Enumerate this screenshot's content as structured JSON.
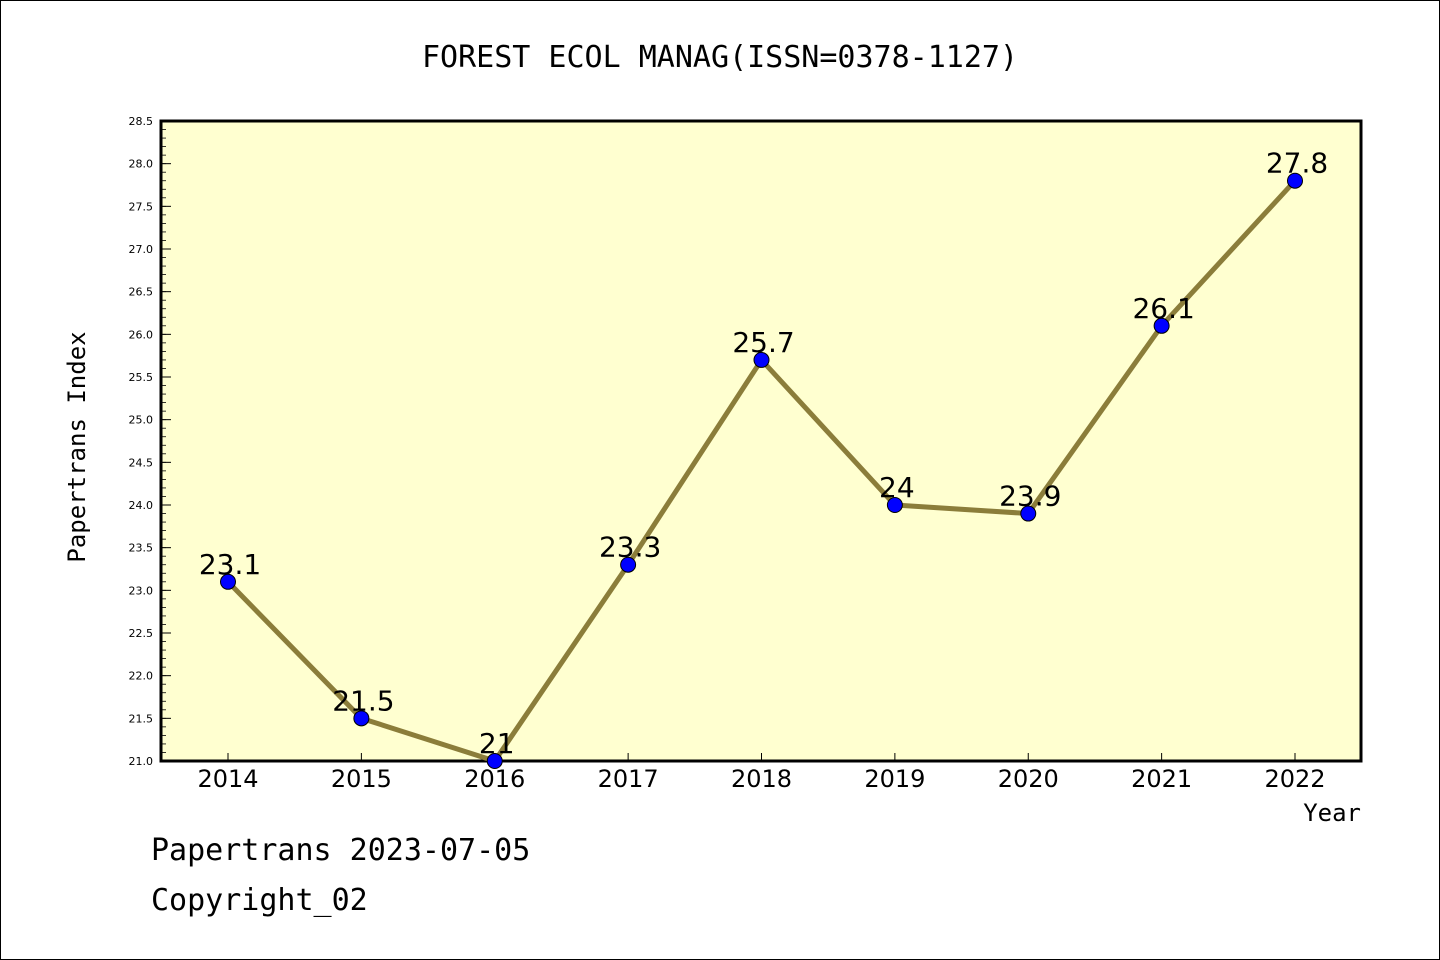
{
  "chart_data": {
    "type": "line",
    "title": "FOREST ECOL MANAG(ISSN=0378-1127)",
    "xlabel": "Year",
    "ylabel": "Papertrans Index",
    "categories": [
      "2014",
      "2015",
      "2016",
      "2017",
      "2018",
      "2019",
      "2020",
      "2021",
      "2022"
    ],
    "series": [
      {
        "values": [
          23.1,
          21.5,
          21.0,
          23.3,
          25.7,
          24.0,
          23.9,
          26.1,
          27.8
        ],
        "data_labels": [
          "23.1",
          "21.5",
          "21",
          "23.3",
          "25.7",
          "24",
          "23.9",
          "26.1",
          "27.8"
        ]
      }
    ],
    "yticks": [
      "21.0",
      "21.5",
      "22.0",
      "22.5",
      "23.0",
      "23.5",
      "24.0",
      "24.5",
      "25.0",
      "25.5",
      "26.0",
      "26.5",
      "27.0",
      "27.5",
      "28.0",
      "28.5"
    ],
    "ylim": [
      21.0,
      28.5
    ],
    "grid": false,
    "colors": {
      "plot_background": "#ffffd0",
      "line": "#8b7d3a",
      "marker": "#0000ff",
      "axis": "#000000"
    }
  },
  "footer": {
    "date_line": "Papertrans 2023-07-05",
    "copyright": "Copyright_02"
  }
}
